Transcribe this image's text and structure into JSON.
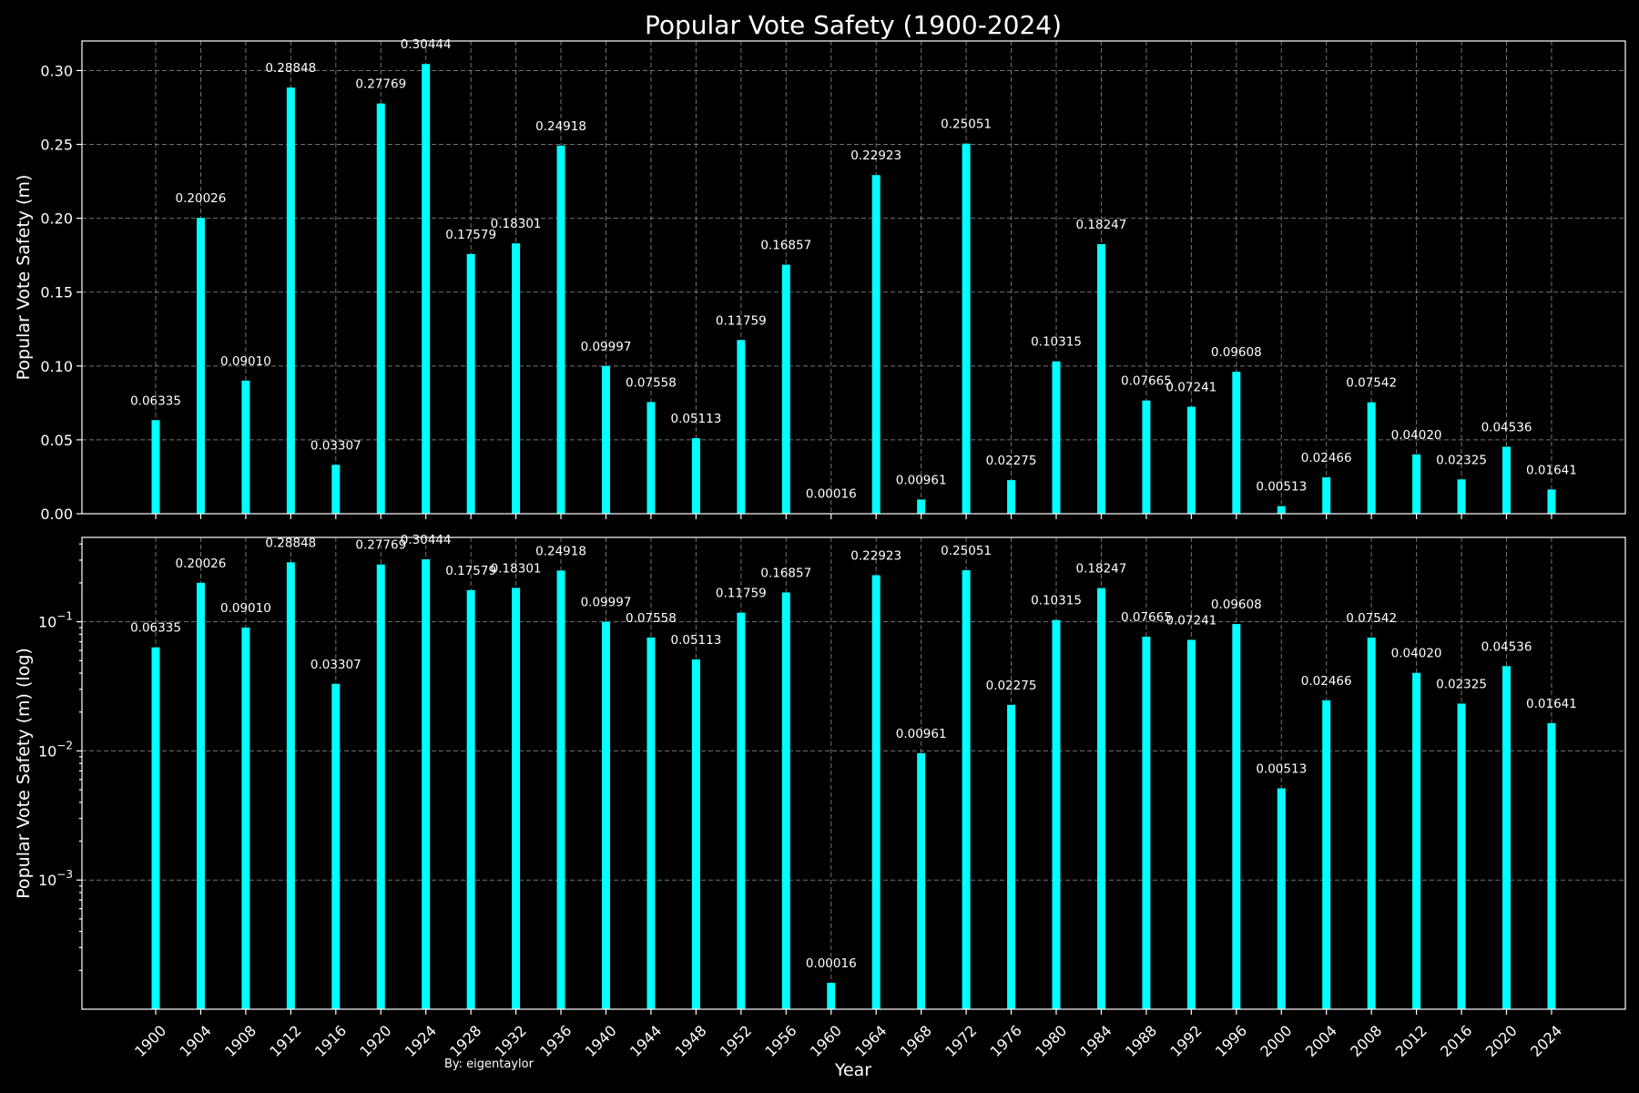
{
  "title": "Popular Vote Safety (1900-2024)",
  "credit": "By: eigentaylor",
  "xlabel": "Year",
  "colors": {
    "background": "#000000",
    "bar": "#00ffff",
    "text": "#ffffff",
    "grid": "#9a9a9a"
  },
  "chart_data": [
    {
      "type": "bar",
      "scale": "linear",
      "ylabel": "Popular Vote Safety (m)",
      "ylim": [
        0,
        0.32
      ],
      "yticks": [
        0.0,
        0.05,
        0.1,
        0.15,
        0.2,
        0.25,
        0.3
      ],
      "ytick_labels": [
        "0.00",
        "0.05",
        "0.10",
        "0.15",
        "0.20",
        "0.25",
        "0.30"
      ],
      "grid": true,
      "categories": [
        "1900",
        "1904",
        "1908",
        "1912",
        "1916",
        "1920",
        "1924",
        "1928",
        "1932",
        "1936",
        "1940",
        "1944",
        "1948",
        "1952",
        "1956",
        "1960",
        "1964",
        "1968",
        "1972",
        "1976",
        "1980",
        "1984",
        "1988",
        "1992",
        "1996",
        "2000",
        "2004",
        "2008",
        "2012",
        "2016",
        "2020",
        "2024"
      ],
      "values": [
        0.06335,
        0.20026,
        0.0901,
        0.28848,
        0.03307,
        0.27769,
        0.30444,
        0.17579,
        0.18301,
        0.24918,
        0.09997,
        0.07558,
        0.05113,
        0.11759,
        0.16857,
        0.00016,
        0.22923,
        0.00961,
        0.25051,
        0.02275,
        0.10315,
        0.18247,
        0.07665,
        0.07241,
        0.09608,
        0.00513,
        0.02466,
        0.07542,
        0.0402,
        0.02325,
        0.04536,
        0.01641
      ],
      "data_labels": [
        "0.06335",
        "0.20026",
        "0.09010",
        "0.28848",
        "0.03307",
        "0.27769",
        "0.30444",
        "0.17579",
        "0.18301",
        "0.24918",
        "0.09997",
        "0.07558",
        "0.05113",
        "0.11759",
        "0.16857",
        "0.00016",
        "0.22923",
        "0.00961",
        "0.25051",
        "0.02275",
        "0.10315",
        "0.18247",
        "0.07665",
        "0.07241",
        "0.09608",
        "0.00513",
        "0.02466",
        "0.07542",
        "0.04020",
        "0.02325",
        "0.04536",
        "0.01641"
      ]
    },
    {
      "type": "bar",
      "scale": "log",
      "ylabel": "Popular Vote Safety (m) (log)",
      "ylim": [
        0.0001,
        0.45
      ],
      "yticks": [
        0.001,
        0.01,
        0.1
      ],
      "ytick_labels": [
        {
          "base": "10",
          "exp": "−3"
        },
        {
          "base": "10",
          "exp": "−2"
        },
        {
          "base": "10",
          "exp": "−1"
        }
      ],
      "grid": true,
      "categories": [
        "1900",
        "1904",
        "1908",
        "1912",
        "1916",
        "1920",
        "1924",
        "1928",
        "1932",
        "1936",
        "1940",
        "1944",
        "1948",
        "1952",
        "1956",
        "1960",
        "1964",
        "1968",
        "1972",
        "1976",
        "1980",
        "1984",
        "1988",
        "1992",
        "1996",
        "2000",
        "2004",
        "2008",
        "2012",
        "2016",
        "2020",
        "2024"
      ],
      "values": [
        0.06335,
        0.20026,
        0.0901,
        0.28848,
        0.03307,
        0.27769,
        0.30444,
        0.17579,
        0.18301,
        0.24918,
        0.09997,
        0.07558,
        0.05113,
        0.11759,
        0.16857,
        0.00016,
        0.22923,
        0.00961,
        0.25051,
        0.02275,
        0.10315,
        0.18247,
        0.07665,
        0.07241,
        0.09608,
        0.00513,
        0.02466,
        0.07542,
        0.0402,
        0.02325,
        0.04536,
        0.01641
      ],
      "data_labels": [
        "0.06335",
        "0.20026",
        "0.09010",
        "0.28848",
        "0.03307",
        "0.27769",
        "0.30444",
        "0.17579",
        "0.18301",
        "0.24918",
        "0.09997",
        "0.07558",
        "0.05113",
        "0.11759",
        "0.16857",
        "0.00016",
        "0.22923",
        "0.00961",
        "0.25051",
        "0.02275",
        "0.10315",
        "0.18247",
        "0.07665",
        "0.07241",
        "0.09608",
        "0.00513",
        "0.02466",
        "0.07542",
        "0.04020",
        "0.02325",
        "0.04536",
        "0.01641"
      ]
    }
  ]
}
